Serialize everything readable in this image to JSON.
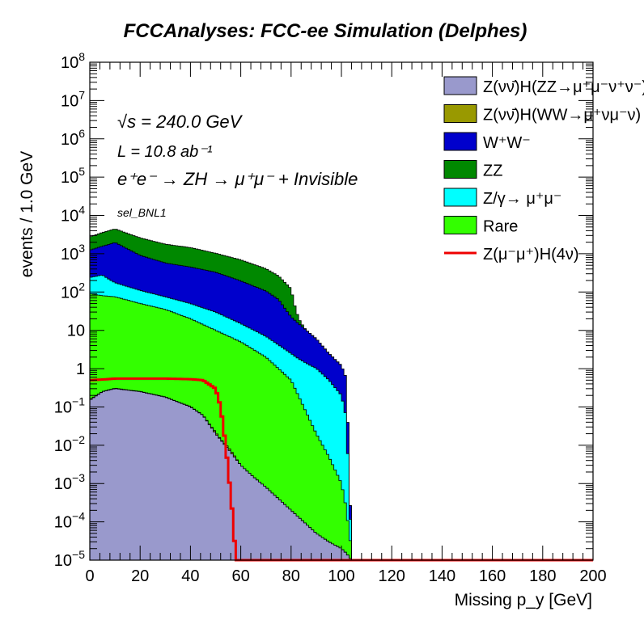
{
  "chart_data": {
    "type": "area",
    "stacked": true,
    "title": "FCCAnalyses: FCC-ee Simulation (Delphes)",
    "xlabel": "Missing p_y [GeV]",
    "ylabel": "events / 1.0 GeV",
    "xlim": [
      0,
      200
    ],
    "ylim": [
      1e-05,
      100000000
    ],
    "yscale": "log",
    "grid": false,
    "legend_placement": "top-right",
    "x_ticks": [
      "0",
      "20",
      "40",
      "60",
      "80",
      "100",
      "120",
      "140",
      "160",
      "180",
      "200"
    ],
    "y_ticks": [
      {
        "value": 1e-05,
        "base": "10",
        "exp": "−5"
      },
      {
        "value": 0.0001,
        "base": "10",
        "exp": "−4"
      },
      {
        "value": 0.001,
        "base": "10",
        "exp": "−3"
      },
      {
        "value": 0.01,
        "base": "10",
        "exp": "−2"
      },
      {
        "value": 0.1,
        "base": "10",
        "exp": "−1"
      },
      {
        "value": 1,
        "base": "1",
        "exp": ""
      },
      {
        "value": 10,
        "base": "10",
        "exp": ""
      },
      {
        "value": 100,
        "base": "10",
        "exp": "2"
      },
      {
        "value": 1000,
        "base": "10",
        "exp": "3"
      },
      {
        "value": 10000,
        "base": "10",
        "exp": "4"
      },
      {
        "value": 100000,
        "base": "10",
        "exp": "5"
      },
      {
        "value": 1000000,
        "base": "10",
        "exp": "6"
      },
      {
        "value": 10000000,
        "base": "10",
        "exp": "7"
      },
      {
        "value": 100000000,
        "base": "10",
        "exp": "8"
      }
    ],
    "annotations": {
      "sqrt_s": "√s = 240.0 GeV",
      "lumi": "L = 10.8 ab⁻¹",
      "process": "e⁺e⁻ → ZH → μ⁺μ⁻ + Invisible",
      "selection": "sel_BNL1"
    },
    "legend": [
      {
        "label": "Z(νν̄)H(ZZ→μ⁺μ⁻ν⁺ν⁻)",
        "color": "#9999cc",
        "kind": "fill"
      },
      {
        "label": "Z(νν̄)H(WW→μ⁺νμ⁻ν)",
        "color": "#999900",
        "kind": "fill"
      },
      {
        "label": "W⁺W⁻",
        "color": "#0000cc",
        "kind": "fill"
      },
      {
        "label": "ZZ",
        "color": "#008800",
        "kind": "fill"
      },
      {
        "label": "Z/γ→ μ⁺μ⁻",
        "color": "#00ffff",
        "kind": "fill"
      },
      {
        "label": "Rare",
        "color": "#33ff00",
        "kind": "fill"
      },
      {
        "label": "Z(μ⁻μ⁺)H(4ν)",
        "color": "#ee0000",
        "kind": "line"
      }
    ],
    "stack": [
      {
        "name": "Z(νν̄)H(ZZ→μ⁺μ⁻ν⁺ν⁻)",
        "color": "#9999cc",
        "x": [
          0,
          5,
          10,
          20,
          30,
          40,
          45,
          50,
          55,
          60,
          65,
          70,
          75,
          80,
          85,
          90,
          95,
          100,
          102,
          104
        ],
        "y": [
          0.15,
          0.25,
          0.3,
          0.25,
          0.18,
          0.1,
          0.06,
          0.02,
          0.008,
          0.003,
          0.0015,
          0.0008,
          0.0004,
          0.0002,
          0.0001,
          5e-05,
          3e-05,
          2e-05,
          1.5e-05,
          1e-05
        ]
      },
      {
        "name": "Z(νν̄)H(WW→μ⁺νμ⁻ν)",
        "color": "#999900",
        "x": [
          0,
          5,
          10,
          15,
          20,
          25,
          30,
          35,
          40,
          45,
          50,
          52,
          55,
          58,
          60
        ],
        "y": [
          0.008,
          0.003,
          0.01,
          0.004,
          0.005,
          0.003,
          0.004,
          0.002,
          0.003,
          0.001,
          0.002,
          0.0005,
          0.001,
          0.0003,
          1e-05
        ]
      },
      {
        "name": "Rare",
        "color": "#33ff00",
        "x": [
          0,
          5,
          10,
          20,
          30,
          40,
          50,
          60,
          70,
          80,
          85,
          90,
          95,
          100,
          102,
          104
        ],
        "y": [
          90,
          80,
          75,
          50,
          35,
          20,
          10,
          5,
          2,
          0.5,
          0.1,
          0.02,
          0.005,
          0.001,
          0.0002,
          1e-05
        ]
      },
      {
        "name": "Z/γ→ μ⁺μ⁻",
        "color": "#00ffff",
        "x": [
          0,
          5,
          10,
          20,
          30,
          40,
          50,
          60,
          70,
          80,
          90,
          95,
          100,
          102,
          104
        ],
        "y": [
          150,
          200,
          100,
          60,
          40,
          30,
          20,
          10,
          5,
          2,
          1,
          0.5,
          0.2,
          0.05,
          1e-05
        ]
      },
      {
        "name": "W⁺W⁻",
        "color": "#0000cc",
        "x": [
          0,
          5,
          10,
          20,
          30,
          40,
          50,
          60,
          70,
          75,
          80,
          85,
          90,
          95,
          100,
          102,
          104
        ],
        "y": [
          1000,
          1300,
          1800,
          800,
          500,
          400,
          300,
          180,
          100,
          60,
          20,
          10,
          5,
          2,
          1,
          0.5,
          1e-05
        ]
      },
      {
        "name": "ZZ",
        "color": "#008800",
        "x": [
          0,
          5,
          10,
          20,
          30,
          40,
          50,
          60,
          70,
          75,
          80,
          85,
          90
        ],
        "y": [
          1500,
          2000,
          2500,
          1700,
          1200,
          1000,
          700,
          500,
          300,
          200,
          100,
          1,
          1e-05
        ]
      }
    ],
    "signal": {
      "name": "Z(μ⁻μ⁺)H(4ν)",
      "color": "#ee0000",
      "x": [
        0,
        5,
        10,
        20,
        30,
        40,
        45,
        50,
        52,
        54,
        56,
        57,
        58,
        60,
        80,
        100,
        150,
        200
      ],
      "y": [
        0.5,
        0.52,
        0.55,
        0.55,
        0.55,
        0.53,
        0.5,
        0.3,
        0.1,
        0.01,
        0.0005,
        0.0001,
        1e-05,
        1e-05,
        1e-05,
        1e-05,
        1e-05,
        1e-05
      ]
    }
  }
}
